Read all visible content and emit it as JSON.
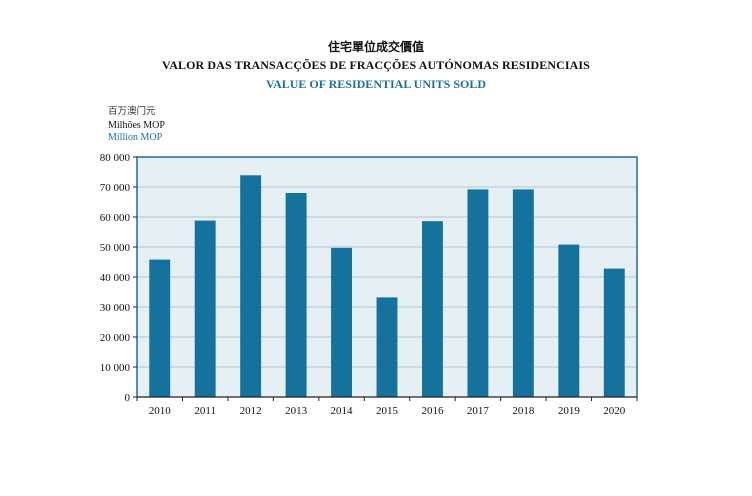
{
  "titles": {
    "zh": "住宅單位成交價值",
    "pt": "VALOR DAS TRANSACÇÕES DE FRACÇÕES AUTÓNOMAS RESIDENCIAIS",
    "en": "VALUE OF RESIDENTIAL UNITS SOLD"
  },
  "units": {
    "zh": "百万澳门元",
    "pt": "Milhões MOP",
    "en": "Million MOP"
  },
  "colors": {
    "bar": "#14729c",
    "plot_bg": "#e6eff4",
    "frame": "#1a6f98",
    "grid": "#a9c6d6",
    "title_en": "#1f6e9c"
  },
  "chart_data": {
    "type": "bar",
    "title": "VALUE OF RESIDENTIAL UNITS SOLD",
    "xlabel": "",
    "ylabel": "Million MOP",
    "categories": [
      "2010",
      "2011",
      "2012",
      "2013",
      "2014",
      "2015",
      "2016",
      "2017",
      "2018",
      "2019",
      "2020"
    ],
    "values": [
      45800,
      58800,
      73900,
      68000,
      49700,
      33200,
      58600,
      69200,
      69200,
      50800,
      42800
    ],
    "ylim": [
      0,
      80000
    ],
    "yticks": [
      0,
      10000,
      20000,
      30000,
      40000,
      50000,
      60000,
      70000,
      80000
    ],
    "ytick_labels": [
      "0",
      "10 000",
      "20 000",
      "30 000",
      "40 000",
      "50 000",
      "60 000",
      "70 000",
      "80 000"
    ],
    "grid": true,
    "legend": "none"
  }
}
